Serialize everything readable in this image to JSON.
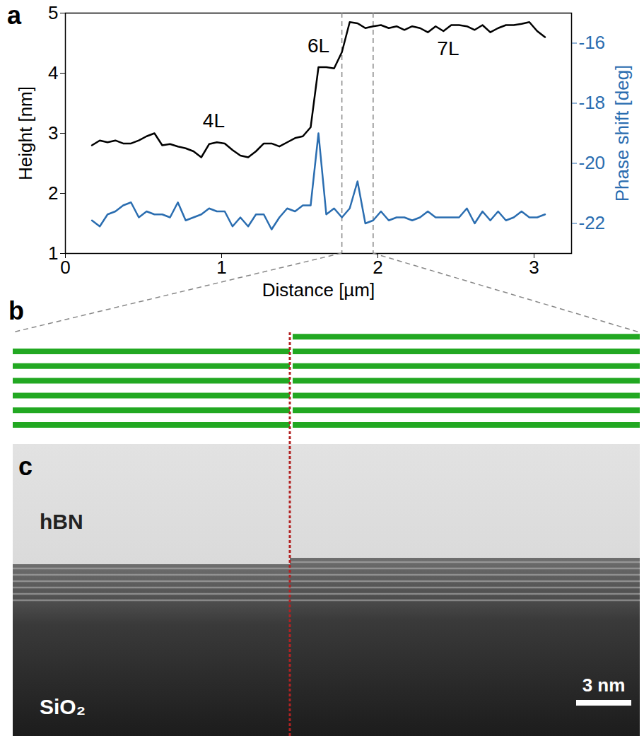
{
  "chart_data": {
    "type": "line",
    "panel": "a",
    "xlabel": "Distance [µm]",
    "ylabel": "Height [nm]",
    "y2label": "Phase shift [deg]",
    "xlim": [
      0,
      3.24
    ],
    "xticks": [
      0,
      1,
      2,
      3
    ],
    "ylim": [
      1,
      5
    ],
    "yticks": [
      1,
      2,
      3,
      4,
      5
    ],
    "y2lim": [
      -23,
      -15
    ],
    "y2ticks": [
      -16,
      -18,
      -20,
      -22
    ],
    "x": [
      0.17,
      0.22,
      0.27,
      0.32,
      0.37,
      0.42,
      0.47,
      0.52,
      0.57,
      0.62,
      0.67,
      0.72,
      0.77,
      0.82,
      0.87,
      0.92,
      0.97,
      1.02,
      1.07,
      1.12,
      1.17,
      1.22,
      1.27,
      1.32,
      1.37,
      1.42,
      1.47,
      1.52,
      1.57,
      1.62,
      1.67,
      1.72,
      1.77,
      1.82,
      1.87,
      1.92,
      1.97,
      2.02,
      2.07,
      2.12,
      2.17,
      2.22,
      2.27,
      2.32,
      2.37,
      2.42,
      2.47,
      2.52,
      2.57,
      2.62,
      2.67,
      2.72,
      2.77,
      2.82,
      2.87,
      2.92,
      2.97,
      3.02,
      3.07
    ],
    "series": [
      {
        "color": "#000000",
        "values": [
          2.8,
          2.88,
          2.85,
          2.88,
          2.83,
          2.83,
          2.88,
          2.95,
          3.0,
          2.8,
          2.82,
          2.78,
          2.75,
          2.7,
          2.6,
          2.82,
          2.85,
          2.83,
          2.72,
          2.63,
          2.6,
          2.7,
          2.83,
          2.83,
          2.78,
          2.85,
          2.92,
          2.95,
          3.1,
          4.1,
          4.1,
          4.08,
          4.35,
          4.85,
          4.83,
          4.75,
          4.78,
          4.8,
          4.75,
          4.78,
          4.72,
          4.78,
          4.75,
          4.68,
          4.78,
          4.7,
          4.8,
          4.8,
          4.78,
          4.72,
          4.8,
          4.68,
          4.75,
          4.8,
          4.8,
          4.82,
          4.85,
          4.7,
          4.6
        ]
      },
      {
        "color": "#2a6db0",
        "axis": "y2",
        "values": [
          -21.9,
          -22.1,
          -21.7,
          -21.6,
          -21.4,
          -21.3,
          -21.8,
          -21.6,
          -21.7,
          -21.7,
          -21.8,
          -21.3,
          -21.9,
          -21.8,
          -21.7,
          -21.5,
          -21.6,
          -21.6,
          -22.1,
          -21.8,
          -22.1,
          -21.7,
          -21.7,
          -22.2,
          -21.8,
          -21.5,
          -21.6,
          -21.4,
          -21.4,
          -19.0,
          -21.7,
          -21.5,
          -21.8,
          -21.5,
          -20.6,
          -22.0,
          -21.9,
          -21.6,
          -21.9,
          -21.8,
          -21.8,
          -21.9,
          -21.8,
          -21.6,
          -21.8,
          -21.8,
          -21.8,
          -21.8,
          -21.5,
          -22.0,
          -21.6,
          -21.9,
          -21.6,
          -21.9,
          -21.8,
          -21.6,
          -21.8,
          -21.8,
          -21.7
        ]
      }
    ],
    "annotations": [
      {
        "text": "4L",
        "x": 0.95,
        "y": 3.2
      },
      {
        "text": "6L",
        "x": 1.62,
        "y": 4.45
      },
      {
        "text": "7L",
        "x": 2.45,
        "y": 4.4
      }
    ],
    "reference_lines": {
      "x": [
        1.77,
        1.97
      ],
      "line_style": "dashed"
    }
  },
  "diagram": {
    "panel": "b",
    "layers": [
      6,
      7
    ],
    "color": "#22a822"
  },
  "micrograph": {
    "panel": "c",
    "labels": {
      "top": "hBN",
      "bottom": "SiO₂"
    },
    "scale_bar": "3 nm"
  }
}
